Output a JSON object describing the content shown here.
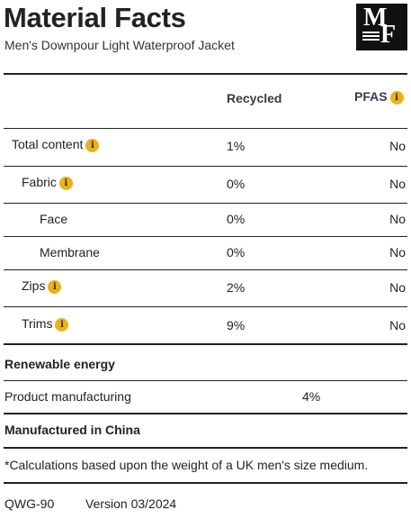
{
  "header": {
    "title": "Material Facts",
    "subtitle": "Men's Downpour Light Waterproof Jacket",
    "logo": {
      "line1": "M",
      "line2": "F"
    }
  },
  "columns": {
    "recycled": "Recycled",
    "pfas": "PFAS"
  },
  "rows": [
    {
      "label": "Total content",
      "recycled": "1%",
      "pfas": "No"
    },
    {
      "label": "Fabric",
      "recycled": "0%",
      "pfas": "No"
    },
    {
      "label": "Face",
      "recycled": "0%",
      "pfas": "No"
    },
    {
      "label": "Membrane",
      "recycled": "0%",
      "pfas": "No"
    },
    {
      "label": "Zips",
      "recycled": "2%",
      "pfas": "No"
    },
    {
      "label": "Trims",
      "recycled": "9%",
      "pfas": "No"
    }
  ],
  "renewable": {
    "heading": "Renewable energy",
    "label": "Product manufacturing",
    "value": "4%"
  },
  "origin": "Manufactured in China",
  "footnote": "*Calculations based upon the weight of a UK men's size medium.",
  "footer": {
    "code": "QWG-90",
    "version": "Version 03/2024"
  },
  "info_glyph": "i",
  "colors": {
    "info_badge": "#e8b21c",
    "rule": "#222222",
    "logo_bg": "#111111"
  }
}
